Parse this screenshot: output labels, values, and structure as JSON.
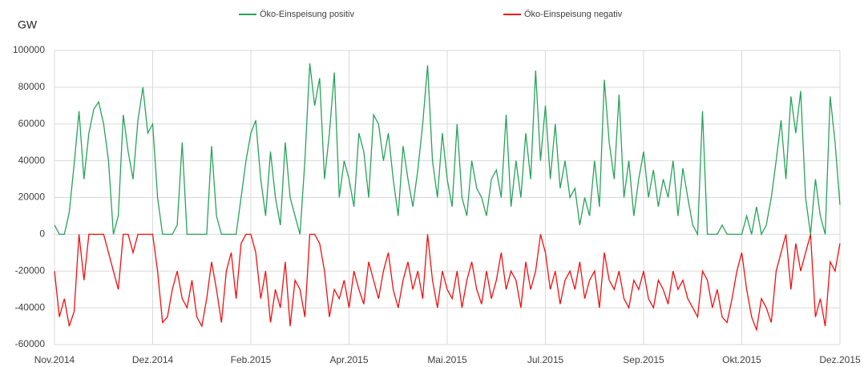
{
  "chart_data": {
    "type": "line",
    "y_label": "GW",
    "categories": [
      "Nov.2014",
      null,
      null,
      null,
      null,
      null,
      null,
      null,
      null,
      null,
      null,
      null,
      null,
      null,
      null,
      null,
      null,
      null,
      null,
      null,
      "Dez.2014",
      null,
      null,
      null,
      null,
      null,
      null,
      null,
      null,
      null,
      null,
      null,
      null,
      null,
      null,
      null,
      null,
      null,
      null,
      null,
      "Feb.2015",
      null,
      null,
      null,
      null,
      null,
      null,
      null,
      null,
      null,
      null,
      null,
      null,
      null,
      null,
      null,
      null,
      null,
      null,
      null,
      "Apr.2015",
      null,
      null,
      null,
      null,
      null,
      null,
      null,
      null,
      null,
      null,
      null,
      null,
      null,
      null,
      null,
      null,
      null,
      null,
      null,
      "Mai.2015",
      null,
      null,
      null,
      null,
      null,
      null,
      null,
      null,
      null,
      null,
      null,
      null,
      null,
      null,
      null,
      null,
      null,
      null,
      null,
      "Jul.2015",
      null,
      null,
      null,
      null,
      null,
      null,
      null,
      null,
      null,
      null,
      null,
      null,
      null,
      null,
      null,
      null,
      null,
      null,
      null,
      "Sep.2015",
      null,
      null,
      null,
      null,
      null,
      null,
      null,
      null,
      null,
      null,
      null,
      null,
      null,
      null,
      null,
      null,
      null,
      null,
      null,
      "Okt.2015",
      null,
      null,
      null,
      null,
      null,
      null,
      null,
      null,
      null,
      null,
      null,
      null,
      null,
      null,
      null,
      null,
      null,
      null,
      null,
      "Dez.2015"
    ],
    "series": [
      {
        "name": "Öko-Einspeisung positiv",
        "color": "#27a35a",
        "values": [
          5000,
          0,
          0,
          12000,
          38000,
          67000,
          30000,
          55000,
          68000,
          72000,
          60000,
          40000,
          0,
          10000,
          65000,
          45000,
          30000,
          62000,
          80000,
          55000,
          60000,
          20000,
          0,
          0,
          0,
          5000,
          50000,
          0,
          0,
          0,
          0,
          0,
          48000,
          10000,
          0,
          0,
          0,
          0,
          20000,
          40000,
          55000,
          62000,
          30000,
          10000,
          45000,
          20000,
          5000,
          50000,
          20000,
          10000,
          0,
          40000,
          93000,
          70000,
          85000,
          30000,
          55000,
          88000,
          20000,
          40000,
          30000,
          15000,
          55000,
          45000,
          20000,
          65000,
          60000,
          40000,
          55000,
          30000,
          10000,
          48000,
          30000,
          15000,
          35000,
          60000,
          92000,
          40000,
          20000,
          55000,
          30000,
          15000,
          60000,
          20000,
          10000,
          40000,
          25000,
          20000,
          10000,
          30000,
          35000,
          20000,
          65000,
          15000,
          40000,
          20000,
          55000,
          30000,
          89000,
          40000,
          70000,
          30000,
          60000,
          25000,
          40000,
          20000,
          25000,
          5000,
          20000,
          10000,
          40000,
          15000,
          84000,
          50000,
          30000,
          76000,
          20000,
          40000,
          10000,
          30000,
          45000,
          20000,
          35000,
          15000,
          30000,
          20000,
          40000,
          10000,
          36000,
          20000,
          5000,
          0,
          67000,
          0,
          0,
          0,
          5000,
          0,
          0,
          0,
          0,
          10000,
          0,
          15000,
          0,
          5000,
          20000,
          40000,
          62000,
          30000,
          75000,
          55000,
          78000,
          20000,
          0,
          30000,
          10000,
          0,
          75000,
          50000,
          16000
        ]
      },
      {
        "name": "Öko-Einspeisung negativ",
        "color": "#f01010",
        "values": [
          -20000,
          -45000,
          -35000,
          -50000,
          -42000,
          0,
          -25000,
          0,
          0,
          0,
          0,
          -10000,
          -20000,
          -30000,
          0,
          0,
          -10000,
          0,
          0,
          0,
          0,
          -20000,
          -48000,
          -45000,
          -30000,
          -20000,
          -35000,
          -40000,
          -25000,
          -45000,
          -50000,
          -35000,
          -15000,
          -30000,
          -48000,
          -20000,
          -10000,
          -35000,
          -5000,
          0,
          0,
          -10000,
          -35000,
          -20000,
          -48000,
          -30000,
          -40000,
          -15000,
          -50000,
          -25000,
          -30000,
          -45000,
          0,
          0,
          -5000,
          -20000,
          -45000,
          -30000,
          -35000,
          -25000,
          -40000,
          -20000,
          -30000,
          -38000,
          -15000,
          -25000,
          -35000,
          -20000,
          -10000,
          -30000,
          -40000,
          -25000,
          -15000,
          -30000,
          -20000,
          -35000,
          0,
          -25000,
          -40000,
          -20000,
          -30000,
          -35000,
          -20000,
          -40000,
          -25000,
          -15000,
          -30000,
          -38000,
          -20000,
          -35000,
          -25000,
          -10000,
          -30000,
          -20000,
          -25000,
          -40000,
          -15000,
          -30000,
          -20000,
          0,
          -10000,
          -30000,
          -20000,
          -38000,
          -25000,
          -20000,
          -30000,
          -15000,
          -35000,
          -25000,
          -20000,
          -40000,
          -10000,
          -25000,
          -30000,
          -20000,
          -35000,
          -40000,
          -25000,
          -30000,
          -20000,
          -35000,
          -40000,
          -25000,
          -30000,
          -38000,
          -20000,
          -30000,
          -25000,
          -35000,
          -40000,
          -45000,
          -20000,
          -25000,
          -40000,
          -30000,
          -45000,
          -48000,
          -35000,
          -20000,
          -10000,
          -30000,
          -45000,
          -52000,
          -35000,
          -40000,
          -48000,
          -20000,
          -10000,
          0,
          -30000,
          -5000,
          -20000,
          -10000,
          0,
          -45000,
          -35000,
          -50000,
          -15000,
          -20000,
          -5000
        ]
      }
    ],
    "ylim": [
      -60000,
      100000
    ],
    "yticks": [
      -60000,
      -40000,
      -20000,
      0,
      20000,
      40000,
      60000,
      80000,
      100000
    ],
    "grid": true,
    "legend": "top"
  }
}
